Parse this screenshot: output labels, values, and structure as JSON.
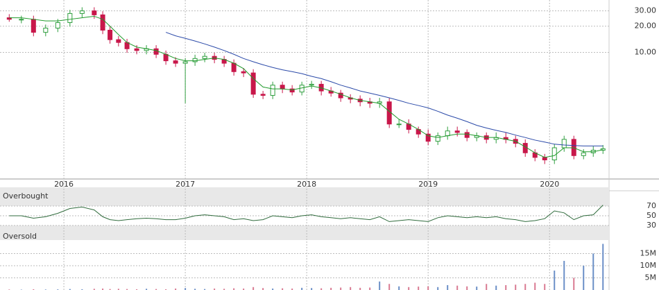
{
  "chart_data": {
    "type": "candlestick",
    "x": [
      2015.55,
      2015.65,
      2015.75,
      2015.85,
      2015.95,
      2016.05,
      2016.15,
      2016.25,
      2016.32,
      2016.38,
      2016.45,
      2016.52,
      2016.6,
      2016.68,
      2016.76,
      2016.84,
      2016.92,
      2017.0,
      2017.08,
      2017.16,
      2017.24,
      2017.32,
      2017.4,
      2017.48,
      2017.56,
      2017.64,
      2017.72,
      2017.8,
      2017.88,
      2017.96,
      2018.04,
      2018.12,
      2018.2,
      2018.28,
      2018.36,
      2018.44,
      2018.52,
      2018.6,
      2018.68,
      2018.76,
      2018.84,
      2018.92,
      2019.0,
      2019.08,
      2019.16,
      2019.24,
      2019.32,
      2019.4,
      2019.48,
      2019.56,
      2019.64,
      2019.72,
      2019.8,
      2019.88,
      2019.96,
      2020.04,
      2020.12,
      2020.2,
      2020.28,
      2020.36,
      2020.44
    ],
    "open": [
      25,
      24,
      24,
      17,
      19,
      22,
      28,
      30,
      27,
      18,
      14,
      13,
      11,
      10.5,
      11,
      9.5,
      8,
      7.5,
      7.8,
      8.5,
      9,
      8.3,
      7.5,
      6,
      5.8,
      3.3,
      3.2,
      4.2,
      3.8,
      3.5,
      4.2,
      4.3,
      3.6,
      3.4,
      3.0,
      2.9,
      2.7,
      2.6,
      2.7,
      1.5,
      1.5,
      1.3,
      1.15,
      0.95,
      1.1,
      1.25,
      1.2,
      1.05,
      1.1,
      1.0,
      1.05,
      1.0,
      0.9,
      0.7,
      0.62,
      0.58,
      0.8,
      1.0,
      0.65,
      0.7,
      0.75
    ],
    "high": [
      27.5,
      26.4,
      26.4,
      20.9,
      24.2,
      30.8,
      33,
      33,
      29.7,
      19.8,
      15.4,
      14.3,
      12.1,
      12.1,
      12.1,
      10.5,
      8.8,
      8.6,
      9.4,
      9.9,
      9.9,
      9.1,
      8.3,
      6.6,
      6.4,
      3.6,
      4.6,
      4.6,
      4.2,
      4.6,
      4.7,
      4.7,
      4.0,
      3.7,
      3.3,
      3.2,
      3.0,
      3.0,
      3.0,
      1.7,
      1.7,
      1.4,
      1.3,
      1.2,
      1.4,
      1.4,
      1.3,
      1.2,
      1.2,
      1.2,
      1.2,
      1.1,
      1.0,
      0.77,
      0.68,
      0.88,
      1.1,
      1.1,
      0.77,
      0.83,
      0.86
    ],
    "low": [
      22.5,
      21.6,
      15.3,
      15.3,
      17.1,
      19.8,
      25.2,
      24.3,
      16.2,
      12.6,
      11.7,
      9.9,
      9.5,
      9.5,
      8.6,
      7.2,
      6.8,
      2.6,
      7.0,
      7.7,
      7.5,
      6.8,
      5.4,
      5.2,
      3.0,
      2.9,
      2.9,
      3.4,
      3.2,
      3.2,
      3.8,
      3.2,
      3.1,
      2.7,
      2.6,
      2.4,
      2.3,
      2.3,
      1.35,
      1.35,
      1.17,
      1.04,
      0.86,
      0.86,
      0.99,
      1.08,
      0.95,
      0.95,
      0.9,
      0.9,
      0.9,
      0.81,
      0.63,
      0.56,
      0.52,
      0.52,
      0.72,
      0.59,
      0.59,
      0.63,
      0.68
    ],
    "close": [
      24,
      24,
      17,
      19,
      22,
      28,
      30,
      27,
      18,
      14,
      13,
      11,
      10.5,
      11,
      9.5,
      8,
      7.5,
      7.8,
      8.5,
      9,
      8.3,
      7.5,
      6,
      5.8,
      3.3,
      3.2,
      4.2,
      3.8,
      3.5,
      4.2,
      4.3,
      3.6,
      3.4,
      3.0,
      2.9,
      2.7,
      2.6,
      2.7,
      1.5,
      1.5,
      1.3,
      1.15,
      0.95,
      1.1,
      1.25,
      1.2,
      1.05,
      1.1,
      1.0,
      1.05,
      1.0,
      0.9,
      0.7,
      0.62,
      0.58,
      0.8,
      1.0,
      0.65,
      0.7,
      0.75,
      0.78
    ],
    "up_color": "#2e9e3e",
    "down_color": "#c8174a",
    "series": [
      {
        "color": "#1f9a2a",
        "values": [
          25,
          25,
          24,
          23,
          23,
          24,
          25,
          26,
          24,
          20,
          16,
          13,
          11.5,
          11,
          10.5,
          9.5,
          8.5,
          8,
          8,
          8.3,
          8.6,
          8.3,
          7.5,
          6.5,
          5,
          4,
          3.8,
          3.8,
          3.7,
          3.9,
          4.1,
          3.9,
          3.6,
          3.3,
          3.0,
          2.8,
          2.7,
          2.6,
          2.1,
          1.7,
          1.5,
          1.3,
          1.1,
          1.05,
          1.1,
          1.15,
          1.15,
          1.1,
          1.05,
          1.05,
          1.0,
          0.95,
          0.82,
          0.7,
          0.62,
          0.65,
          0.8,
          0.8,
          0.72,
          0.72,
          0.76
        ]
      },
      {
        "color": "#2a49a8",
        "values": [
          null,
          null,
          null,
          null,
          null,
          null,
          null,
          null,
          null,
          null,
          null,
          null,
          null,
          null,
          null,
          17,
          15.5,
          14.5,
          13.5,
          12.5,
          11.5,
          10.5,
          9.5,
          8.5,
          7.8,
          7.2,
          6.7,
          6.3,
          6.0,
          5.7,
          5.3,
          5.0,
          4.6,
          4.2,
          3.9,
          3.6,
          3.4,
          3.2,
          3.0,
          2.8,
          2.6,
          2.45,
          2.3,
          2.1,
          1.9,
          1.75,
          1.6,
          1.45,
          1.35,
          1.27,
          1.2,
          1.12,
          1.05,
          0.98,
          0.93,
          0.88,
          0.86,
          0.85,
          0.84,
          0.84,
          0.84
        ]
      }
    ],
    "xlim": [
      2015.474,
      2020.49
    ],
    "xticks": [
      2016,
      2017,
      2018,
      2019,
      2020
    ],
    "ylim": [
      0.35,
      40
    ],
    "log_scale": true,
    "yticks": [
      {
        "value": 30,
        "label": "30.00"
      },
      {
        "value": 20,
        "label": "20.00"
      },
      {
        "value": 10,
        "label": "10.00"
      }
    ],
    "grid": true,
    "rsi": {
      "upper_label": "Overbought",
      "lower_label": "Oversold",
      "color": "#2f6b3c",
      "values": [
        50,
        50,
        45,
        48,
        55,
        65,
        68,
        62,
        48,
        42,
        40,
        42,
        44,
        45,
        44,
        42,
        42,
        45,
        50,
        52,
        50,
        48,
        42,
        44,
        40,
        42,
        50,
        48,
        46,
        50,
        52,
        48,
        46,
        44,
        46,
        44,
        42,
        48,
        38,
        40,
        42,
        40,
        38,
        46,
        50,
        48,
        46,
        48,
        46,
        48,
        44,
        42,
        38,
        40,
        44,
        60,
        56,
        42,
        50,
        52,
        72
      ],
      "ylim": [
        0,
        100
      ],
      "yticks": [
        70,
        50,
        30
      ]
    },
    "volume": {
      "up_color": "#6b8fc7",
      "down_color": "#d97a92",
      "values": [
        200000,
        150000,
        300000,
        200000,
        250000,
        400000,
        300000,
        500000,
        600000,
        400000,
        500000,
        400000,
        300000,
        500000,
        400000,
        300000,
        600000,
        800000,
        500000,
        400000,
        600000,
        500000,
        700000,
        600000,
        1200000,
        800000,
        600000,
        700000,
        600000,
        900000,
        800000,
        700000,
        900000,
        1000000,
        1200000,
        900000,
        1000000,
        3500000,
        2500000,
        1500000,
        1200000,
        1400000,
        1500000,
        1200000,
        2000000,
        1800000,
        1500000,
        1400000,
        2500000,
        1800000,
        2000000,
        2200000,
        2500000,
        3000000,
        2500000,
        8000000,
        12000000,
        5000000,
        10000000,
        15000000,
        19000000
      ],
      "ylim": [
        0,
        20000000
      ],
      "yticks": [
        {
          "value": 15000000,
          "label": "15M"
        },
        {
          "value": 10000000,
          "label": "10M"
        },
        {
          "value": 5000000,
          "label": "5M"
        }
      ]
    }
  }
}
